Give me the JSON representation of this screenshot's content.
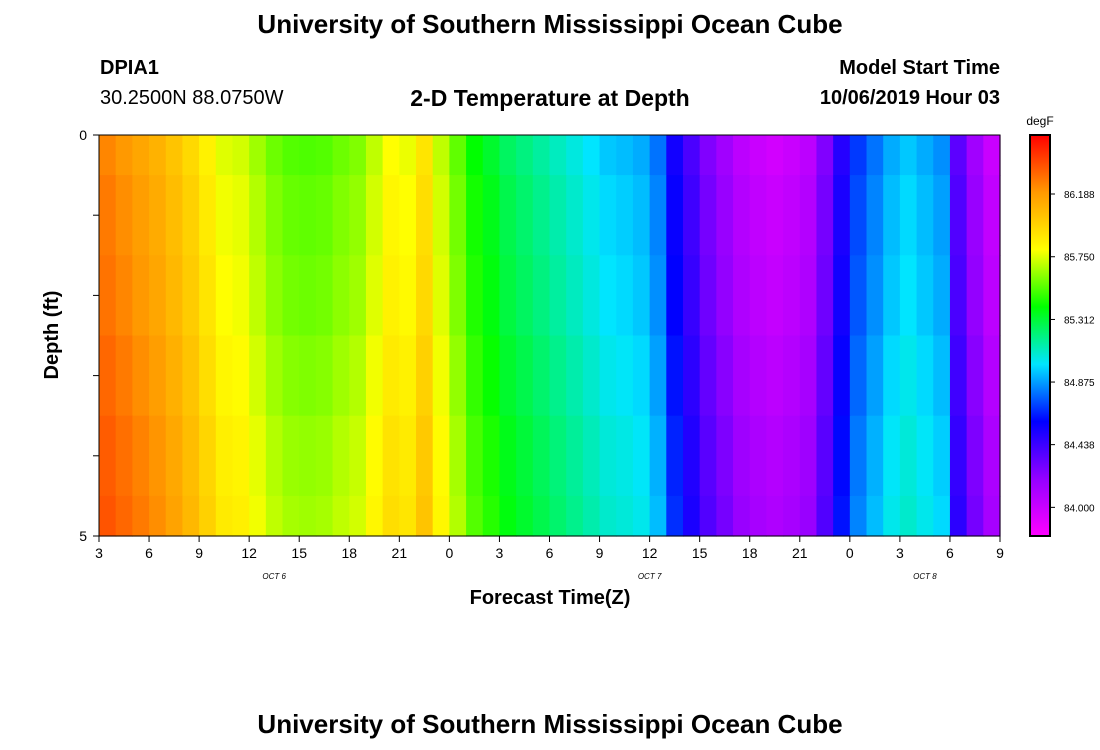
{
  "page": {
    "title_top": "University of Southern Mississippi Ocean Cube",
    "title_bottom": "University of Southern Mississippi Ocean Cube",
    "station": "DPIA1",
    "coords": "30.2500N 88.0750W",
    "model_start_label": "Model Start Time",
    "model_start_value": "10/06/2019 Hour 03"
  },
  "colors": {
    "ramp": [
      "#ff00ff",
      "#9400ff",
      "#0000ff",
      "#00e5ff",
      "#00ff00",
      "#ffff00",
      "#ff9900",
      "#ff0000"
    ]
  },
  "chart_data": {
    "type": "heatmap",
    "title": "2-D Temperature at Depth",
    "xlabel": "Forecast Time(Z)",
    "ylabel": "Depth (ft)",
    "ylim": [
      0,
      5
    ],
    "y_ticks": [
      "0",
      "5"
    ],
    "x_ticks": [
      "3",
      "6",
      "9",
      "12",
      "15",
      "18",
      "21",
      "0",
      "3",
      "6",
      "9",
      "12",
      "15",
      "18",
      "21",
      "0",
      "3",
      "6",
      "9"
    ],
    "date_labels": [
      {
        "label": "OCT 6",
        "hour_index": 10.5
      },
      {
        "label": "OCT 7",
        "hour_index": 33
      },
      {
        "label": "OCT 8",
        "hour_index": 49.5
      }
    ],
    "forecast_hours": 54,
    "depth_layers": [
      "0.0-0.5",
      "0.5-1.5",
      "1.5-2.5",
      "2.5-3.5",
      "3.5-4.5",
      "4.5-5.0"
    ],
    "colorbar": {
      "unit": "degF",
      "vmin": 83.8,
      "vmax": 86.6,
      "ticks": [
        "86.188",
        "85.750",
        "85.312",
        "84.875",
        "84.438",
        "84.000"
      ]
    },
    "depth_offsets_degF": [
      -0.05,
      -0.02,
      0.0,
      0.03,
      0.06,
      0.08
    ],
    "values_surface_degF": [
      86.3,
      86.25,
      86.2,
      86.15,
      86.08,
      86.0,
      85.9,
      85.8,
      85.78,
      85.7,
      85.62,
      85.58,
      85.57,
      85.58,
      85.62,
      85.65,
      85.75,
      85.85,
      85.82,
      85.95,
      85.75,
      85.6,
      85.45,
      85.38,
      85.3,
      85.25,
      85.2,
      85.15,
      85.1,
      85.05,
      85.0,
      84.98,
      84.95,
      84.85,
      84.6,
      84.45,
      84.3,
      84.2,
      84.1,
      84.05,
      84.02,
      84.05,
      84.1,
      84.3,
      84.55,
      84.75,
      84.85,
      84.95,
      85.0,
      84.95,
      84.9,
      84.4,
      84.2,
      84.05
    ]
  }
}
